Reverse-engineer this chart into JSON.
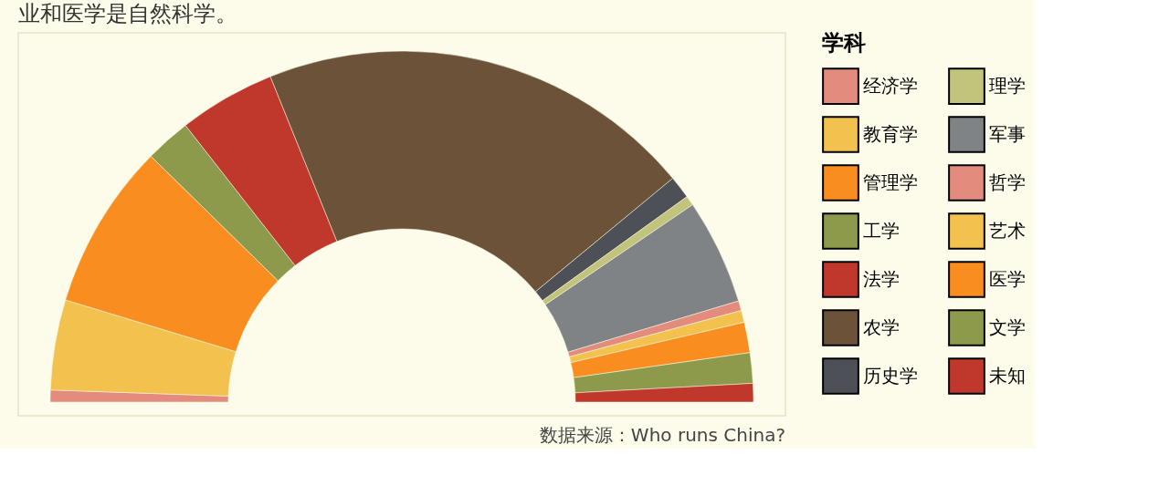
{
  "chart_data": {
    "type": "donut",
    "title": "业和医学是自然科学。",
    "legend_title": "学科",
    "legend": "right",
    "categories": [
      "经济学",
      "教育学",
      "管理学",
      "工学",
      "法学",
      "农学",
      "历史学",
      "理学",
      "军事",
      "哲学",
      "艺术",
      "医学",
      "文学",
      "未知"
    ],
    "values": [
      1.1,
      8.3,
      15.3,
      4.2,
      8.9,
      40.2,
      2.1,
      0.9,
      9.7,
      0.9,
      1.1,
      2.8,
      2.8,
      1.7
    ],
    "colors": [
      "#e38b7d",
      "#f2c14e",
      "#f98d1f",
      "#8d9a4b",
      "#c0382b",
      "#6b5239",
      "#4e5058",
      "#c2c47b",
      "#7f8385",
      "#e38b7d",
      "#f2c14e",
      "#f98d1f",
      "#8d9a4b",
      "#c0382b"
    ],
    "annotations": [
      "数据来源：Who runs China?"
    ]
  }
}
